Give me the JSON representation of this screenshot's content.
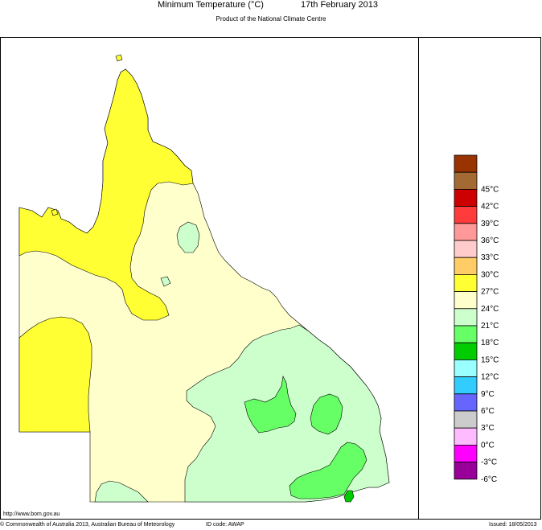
{
  "header": {
    "title": "Minimum Temperature (°C)",
    "date": "17th February 2013",
    "subtitle": "Product of the National Climate Centre"
  },
  "legend": {
    "items": [
      {
        "color": "#993300",
        "label": ""
      },
      {
        "color": "#a46a34",
        "label": "45°C"
      },
      {
        "color": "#cc0000",
        "label": "42°C"
      },
      {
        "color": "#ff3b3b",
        "label": "39°C"
      },
      {
        "color": "#ff9999",
        "label": "36°C"
      },
      {
        "color": "#ffcccc",
        "label": "33°C"
      },
      {
        "color": "#ffcc66",
        "label": "30°C"
      },
      {
        "color": "#ffff33",
        "label": "27°C"
      },
      {
        "color": "#ffffcc",
        "label": "24°C"
      },
      {
        "color": "#ccffcc",
        "label": "21°C"
      },
      {
        "color": "#66ff66",
        "label": "18°C"
      },
      {
        "color": "#00cc00",
        "label": "15°C"
      },
      {
        "color": "#99ffff",
        "label": "12°C"
      },
      {
        "color": "#33ccff",
        "label": "9°C"
      },
      {
        "color": "#6666ff",
        "label": "6°C"
      },
      {
        "color": "#cccccc",
        "label": "3°C"
      },
      {
        "color": "#ffbbff",
        "label": "0°C"
      },
      {
        "color": "#ff00ff",
        "label": "-3°C"
      },
      {
        "color": "#990099",
        "label": "-6°C"
      }
    ]
  },
  "footer": {
    "url": "http://www.bom.gov.au",
    "copyright": "© Commonwealth of Australia 2013, Australian Bureau of Meteorology",
    "id_code": "ID code: AWAP",
    "issued": "Issued: 18/05/2013"
  }
}
